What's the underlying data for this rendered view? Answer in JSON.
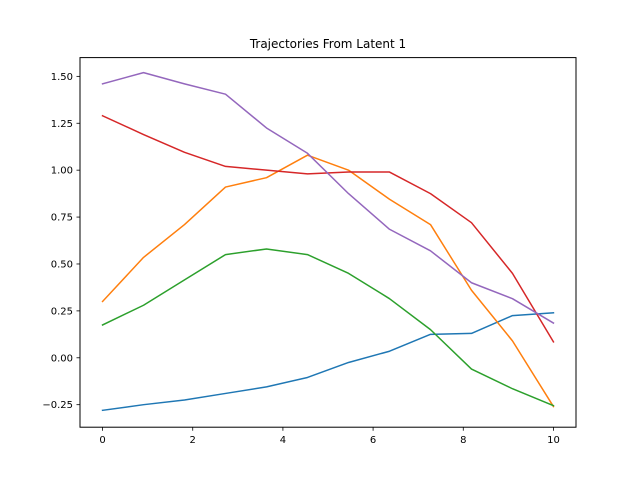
{
  "chart_data": {
    "type": "line",
    "title": "Trajectories From Latent 1",
    "xlabel": "",
    "ylabel": "",
    "xlim": [
      -0.5,
      10.5
    ],
    "ylim": [
      -0.37,
      1.6
    ],
    "xticks": [
      0,
      2,
      4,
      6,
      8,
      10
    ],
    "yticks": [
      -0.25,
      0.0,
      0.25,
      0.5,
      0.75,
      1.0,
      1.25,
      1.5
    ],
    "ytick_labels": [
      "−0.25",
      "0.00",
      "0.25",
      "0.50",
      "0.75",
      "1.00",
      "1.25",
      "1.50"
    ],
    "grid": false,
    "x": [
      0,
      0.909,
      1.818,
      2.727,
      3.636,
      4.545,
      5.455,
      6.364,
      7.273,
      8.182,
      9.091,
      10
    ],
    "series": [
      {
        "color": "#1f77b4",
        "values": [
          -0.28,
          -0.25,
          -0.225,
          -0.19,
          -0.155,
          -0.105,
          -0.025,
          0.035,
          0.125,
          0.13,
          0.225,
          0.24
        ]
      },
      {
        "color": "#ff7f0e",
        "values": [
          0.3,
          0.535,
          0.71,
          0.91,
          0.96,
          1.08,
          1.0,
          0.845,
          0.71,
          0.36,
          0.09,
          -0.26
        ]
      },
      {
        "color": "#2ca02c",
        "values": [
          0.175,
          0.28,
          0.415,
          0.55,
          0.58,
          0.55,
          0.45,
          0.315,
          0.15,
          -0.06,
          -0.165,
          -0.255
        ]
      },
      {
        "color": "#d62728",
        "values": [
          1.29,
          1.19,
          1.095,
          1.02,
          1.0,
          0.98,
          0.99,
          0.99,
          0.875,
          0.72,
          0.45,
          0.085
        ]
      },
      {
        "color": "#9467bd",
        "values": [
          1.46,
          1.52,
          1.46,
          1.405,
          1.225,
          1.09,
          0.875,
          0.685,
          0.57,
          0.4,
          0.315,
          0.185
        ]
      }
    ]
  }
}
